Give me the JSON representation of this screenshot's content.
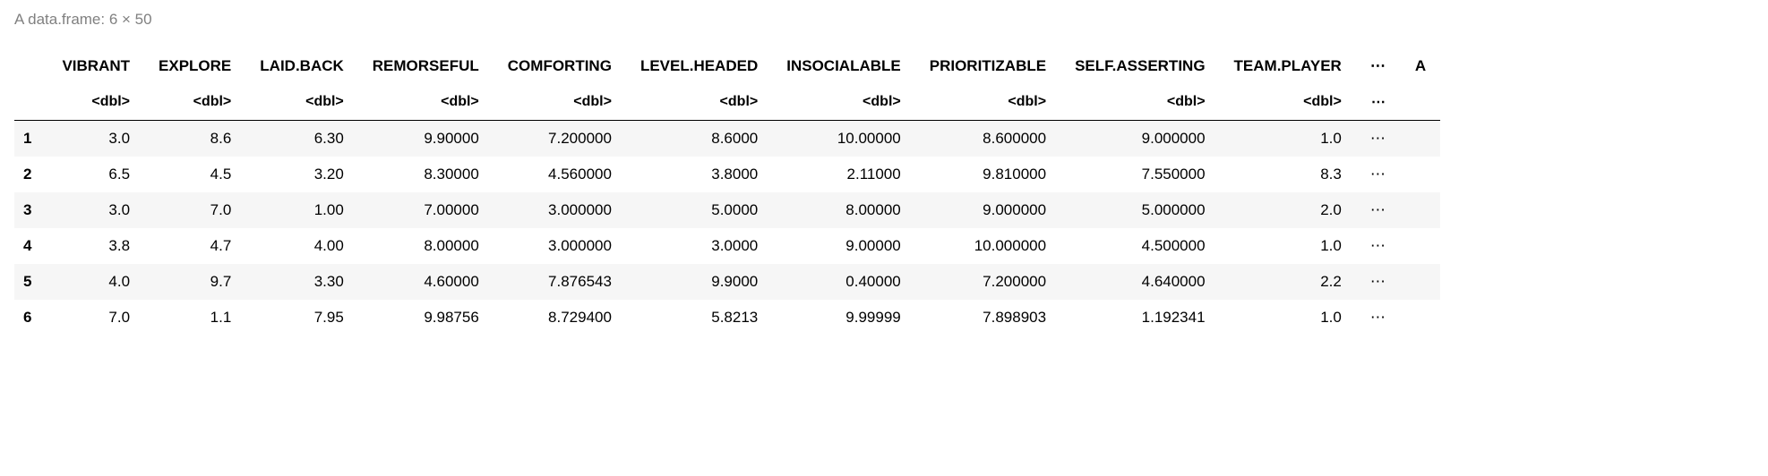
{
  "caption": "A data.frame: 6 × 50",
  "type_label": "<dbl>",
  "ellipsis": "⋯",
  "columns": [
    "VIBRANT",
    "EXPLORE",
    "LAID.BACK",
    "REMORSEFUL",
    "COMFORTING",
    "LEVEL.HEADED",
    "INSOCIALABLE",
    "PRIORITIZABLE",
    "SELF.ASSERTING",
    "TEAM.PLAYER"
  ],
  "trailing_header": "A",
  "row_index": [
    "1",
    "2",
    "3",
    "4",
    "5",
    "6"
  ],
  "rows": [
    [
      "3.0",
      "8.6",
      "6.30",
      "9.90000",
      "7.200000",
      "8.6000",
      "10.00000",
      "8.600000",
      "9.000000",
      "1.0"
    ],
    [
      "6.5",
      "4.5",
      "3.20",
      "8.30000",
      "4.560000",
      "3.8000",
      "2.11000",
      "9.810000",
      "7.550000",
      "8.3"
    ],
    [
      "3.0",
      "7.0",
      "1.00",
      "7.00000",
      "3.000000",
      "5.0000",
      "8.00000",
      "9.000000",
      "5.000000",
      "2.0"
    ],
    [
      "3.8",
      "4.7",
      "4.00",
      "8.00000",
      "3.000000",
      "3.0000",
      "9.00000",
      "10.000000",
      "4.500000",
      "1.0"
    ],
    [
      "4.0",
      "9.7",
      "3.30",
      "4.60000",
      "7.876543",
      "9.9000",
      "0.40000",
      "7.200000",
      "4.640000",
      "2.2"
    ],
    [
      "7.0",
      "1.1",
      "7.95",
      "9.98756",
      "8.729400",
      "5.8213",
      "9.99999",
      "7.898903",
      "1.192341",
      "1.0"
    ]
  ],
  "colors": {
    "caption": "#808080",
    "text": "#000000",
    "stripe": "#f6f6f6",
    "background": "#ffffff",
    "rule": "#000000"
  },
  "fontsize": {
    "caption": 17,
    "header": 17,
    "type": 16,
    "cell": 17
  }
}
